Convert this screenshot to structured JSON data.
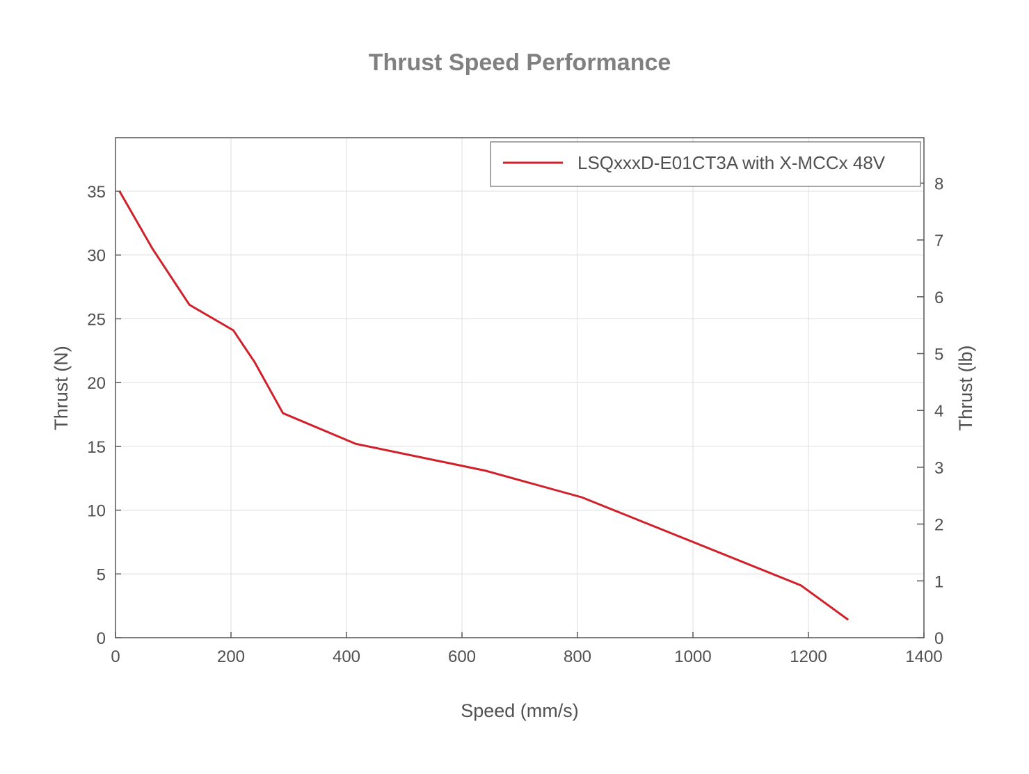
{
  "chart_data": {
    "type": "line",
    "title": "Thrust Speed Performance",
    "xlabel": "Speed (mm/s)",
    "ylabel": "Thrust (N)",
    "y2label": "Thrust (lb)",
    "xlim": [
      0,
      1400
    ],
    "ylim": [
      0,
      39.2
    ],
    "y2lim": [
      0,
      8.8
    ],
    "xticks": [
      0,
      200,
      400,
      600,
      800,
      1000,
      1200,
      1400
    ],
    "yticks": [
      0,
      5,
      10,
      15,
      20,
      25,
      30,
      35
    ],
    "y2ticks": [
      0,
      1,
      2,
      3,
      4,
      5,
      6,
      7,
      8
    ],
    "grid": true,
    "legend_position": "top-right",
    "series": [
      {
        "name": "LSQxxxD-E01CT3A with X-MCCx 48V",
        "color": "#d0202a",
        "x": [
          7,
          64,
          128,
          204,
          241,
          290,
          416,
          640,
          808,
          1187,
          1269
        ],
        "y": [
          35.0,
          30.5,
          26.1,
          24.1,
          21.6,
          17.6,
          15.2,
          13.1,
          11.0,
          4.1,
          1.4
        ]
      }
    ]
  }
}
